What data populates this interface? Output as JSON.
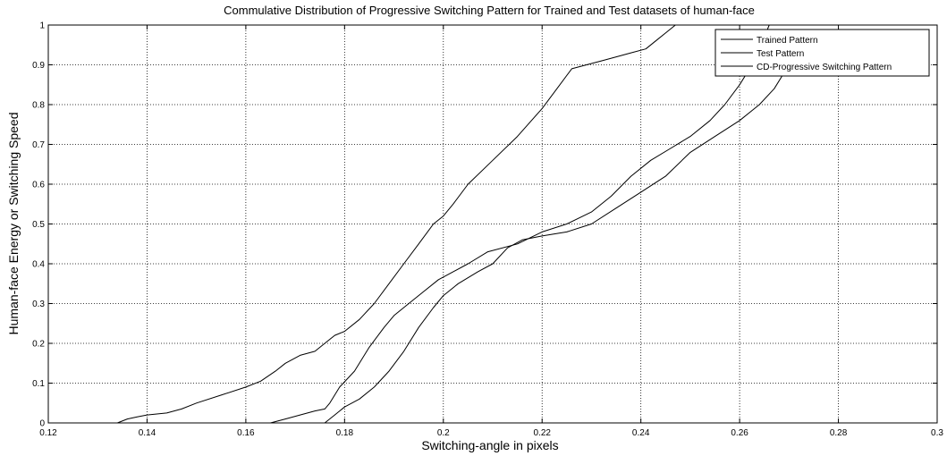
{
  "chart_data": {
    "type": "line",
    "title": "Commulative Distribution of Progressive Switching Pattern for Trained and Test datasets of human-face",
    "xlabel": "Switching-angle in pixels",
    "ylabel": "Human-face Energy or Switching Speed",
    "xlim": [
      0.12,
      0.3
    ],
    "ylim": [
      0,
      1
    ],
    "x_ticks": [
      "0.12",
      "0.14",
      "0.16",
      "0.18",
      "0.2",
      "0.22",
      "0.24",
      "0.26",
      "0.28",
      "0.3"
    ],
    "y_ticks": [
      "0",
      "0.1",
      "0.2",
      "0.3",
      "0.4",
      "0.5",
      "0.6",
      "0.7",
      "0.8",
      "0.9",
      "1"
    ],
    "grid": true,
    "legend_position": "top-right",
    "line_color": "#000000",
    "series": [
      {
        "name": "Trained Pattern",
        "x": [
          0.134,
          0.136,
          0.138,
          0.14,
          0.144,
          0.147,
          0.15,
          0.155,
          0.16,
          0.163,
          0.166,
          0.168,
          0.171,
          0.174,
          0.176,
          0.178,
          0.18,
          0.183,
          0.186,
          0.189,
          0.192,
          0.195,
          0.198,
          0.2,
          0.202,
          0.205,
          0.21,
          0.215,
          0.22,
          0.223,
          0.226,
          0.229,
          0.232,
          0.235,
          0.238,
          0.241,
          0.243,
          0.245,
          0.247
        ],
        "y": [
          0,
          0.01,
          0.015,
          0.02,
          0.025,
          0.035,
          0.05,
          0.07,
          0.09,
          0.105,
          0.13,
          0.15,
          0.17,
          0.18,
          0.2,
          0.22,
          0.23,
          0.26,
          0.3,
          0.35,
          0.4,
          0.45,
          0.5,
          0.52,
          0.55,
          0.6,
          0.66,
          0.72,
          0.79,
          0.84,
          0.89,
          0.9,
          0.91,
          0.92,
          0.93,
          0.94,
          0.96,
          0.98,
          1.0
        ]
      },
      {
        "name": "Test Pattern",
        "x": [
          0.165,
          0.168,
          0.171,
          0.174,
          0.176,
          0.177,
          0.179,
          0.182,
          0.185,
          0.188,
          0.19,
          0.193,
          0.196,
          0.199,
          0.202,
          0.205,
          0.209,
          0.215,
          0.22,
          0.225,
          0.23,
          0.234,
          0.238,
          0.242,
          0.246,
          0.25,
          0.254,
          0.257,
          0.26,
          0.262,
          0.264,
          0.265,
          0.266
        ],
        "y": [
          0,
          0.01,
          0.02,
          0.03,
          0.035,
          0.05,
          0.09,
          0.13,
          0.19,
          0.24,
          0.27,
          0.3,
          0.33,
          0.36,
          0.38,
          0.4,
          0.43,
          0.45,
          0.48,
          0.5,
          0.53,
          0.57,
          0.62,
          0.66,
          0.69,
          0.72,
          0.76,
          0.8,
          0.85,
          0.89,
          0.93,
          0.97,
          1.0
        ]
      },
      {
        "name": "CD-Progressive Switching Pattern",
        "x": [
          0.176,
          0.178,
          0.18,
          0.183,
          0.186,
          0.189,
          0.192,
          0.195,
          0.198,
          0.2,
          0.203,
          0.207,
          0.21,
          0.213,
          0.216,
          0.22,
          0.225,
          0.23,
          0.235,
          0.24,
          0.245,
          0.25,
          0.255,
          0.26,
          0.264,
          0.267,
          0.269,
          0.27
        ],
        "y": [
          0,
          0.02,
          0.04,
          0.06,
          0.09,
          0.13,
          0.18,
          0.24,
          0.29,
          0.32,
          0.35,
          0.38,
          0.4,
          0.44,
          0.46,
          0.47,
          0.48,
          0.5,
          0.54,
          0.58,
          0.62,
          0.68,
          0.72,
          0.76,
          0.8,
          0.84,
          0.88,
          0.9
        ]
      }
    ]
  }
}
